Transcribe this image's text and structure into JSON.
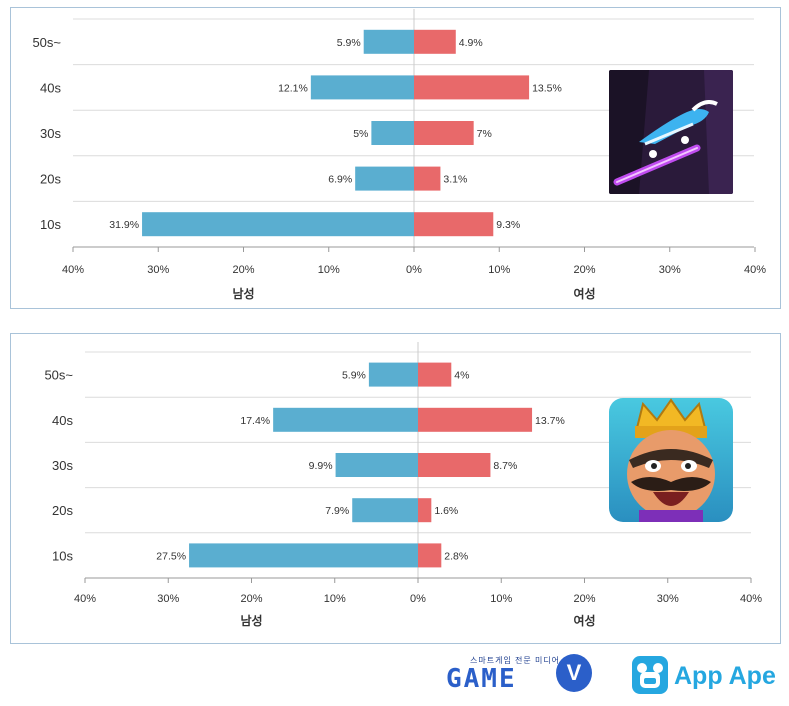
{
  "chart_data": [
    {
      "type": "bar",
      "orientation": "horizontal-diverging",
      "categories": [
        "50s~",
        "40s",
        "30s",
        "20s",
        "10s"
      ],
      "series": [
        {
          "name": "남성",
          "values": [
            5.9,
            12.1,
            5,
            6.9,
            31.9
          ],
          "labels": [
            "5.9%",
            "12.1%",
            "5%",
            "6.9%",
            "31.9%"
          ],
          "color": "#5aaed0"
        },
        {
          "name": "여성",
          "values": [
            4.9,
            13.5,
            7,
            3.1,
            9.3
          ],
          "labels": [
            "4.9%",
            "13.5%",
            "7%",
            "3.1%",
            "9.3%"
          ],
          "color": "#e8696a"
        }
      ],
      "xticks": [
        "40%",
        "30%",
        "20%",
        "10%",
        "0%",
        "10%",
        "20%",
        "30%",
        "40%"
      ],
      "xlim": [
        -40,
        40
      ],
      "grid": true,
      "app_icon": "neon-skate-game-icon"
    },
    {
      "type": "bar",
      "orientation": "horizontal-diverging",
      "categories": [
        "50s~",
        "40s",
        "30s",
        "20s",
        "10s"
      ],
      "series": [
        {
          "name": "남성",
          "values": [
            5.9,
            17.4,
            9.9,
            7.9,
            27.5
          ],
          "labels": [
            "5.9%",
            "17.4%",
            "9.9%",
            "7.9%",
            "27.5%"
          ],
          "color": "#5aaed0"
        },
        {
          "name": "여성",
          "values": [
            4,
            13.7,
            8.7,
            1.6,
            2.8
          ],
          "labels": [
            "4%",
            "13.7%",
            "8.7%",
            "1.6%",
            "2.8%"
          ],
          "color": "#e8696a"
        }
      ],
      "xticks": [
        "40%",
        "30%",
        "20%",
        "10%",
        "0%",
        "10%",
        "20%",
        "30%",
        "40%"
      ],
      "xlim": [
        -40,
        40
      ],
      "grid": true,
      "app_icon": "clash-royale-king-icon"
    }
  ],
  "logos": {
    "gamev_subtitle": "스마트게임 전문 미디어",
    "gamev_name": "GAME",
    "gamev_badge": "V",
    "appape_name": "App Ape"
  }
}
